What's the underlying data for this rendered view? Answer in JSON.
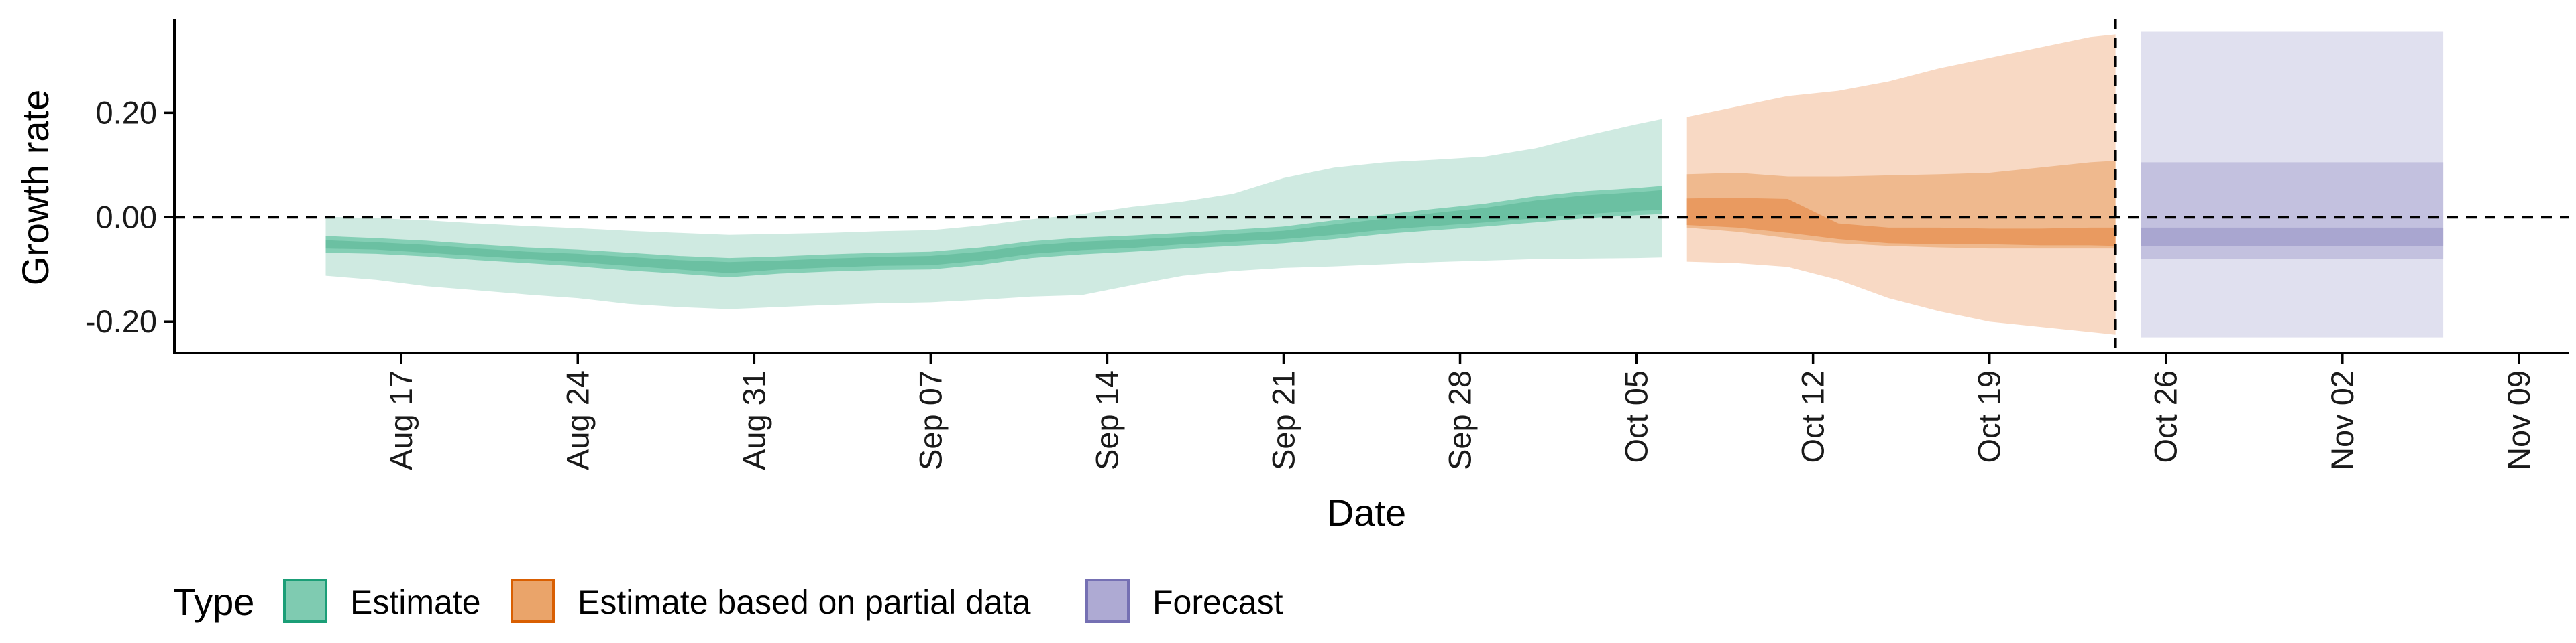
{
  "chart_data": {
    "type": "area",
    "xlabel": "Date",
    "ylabel": "Growth rate",
    "ylim": [
      -0.26,
      0.38
    ],
    "xlim": [
      "2020-08-08",
      "2020-11-11"
    ],
    "y_ticks": [
      {
        "value": -0.2,
        "label": "-0.20"
      },
      {
        "value": 0.0,
        "label": "0.00"
      },
      {
        "value": 0.2,
        "label": "0.20"
      }
    ],
    "x_ticks": [
      {
        "date": "2020-08-17",
        "label": "Aug 17"
      },
      {
        "date": "2020-08-24",
        "label": "Aug 24"
      },
      {
        "date": "2020-08-31",
        "label": "Aug 31"
      },
      {
        "date": "2020-09-07",
        "label": "Sep 07"
      },
      {
        "date": "2020-09-14",
        "label": "Sep 14"
      },
      {
        "date": "2020-09-21",
        "label": "Sep 21"
      },
      {
        "date": "2020-09-28",
        "label": "Sep 28"
      },
      {
        "date": "2020-10-05",
        "label": "Oct 05"
      },
      {
        "date": "2020-10-12",
        "label": "Oct 12"
      },
      {
        "date": "2020-10-19",
        "label": "Oct 19"
      },
      {
        "date": "2020-10-26",
        "label": "Oct 26"
      },
      {
        "date": "2020-11-02",
        "label": "Nov 02"
      },
      {
        "date": "2020-11-09",
        "label": "Nov 09"
      }
    ],
    "reference_lines": {
      "horizontal_y": 0.0,
      "vertical_date": "2020-10-24"
    },
    "legend": {
      "title": "Type",
      "position": "bottom-left",
      "items": [
        {
          "label": "Estimate",
          "fill": "#7fcbb1",
          "border": "#1b9e77"
        },
        {
          "label": "Estimate based on partial data",
          "fill": "#eaa46a",
          "border": "#d95f02"
        },
        {
          "label": "Forecast",
          "fill": "#aeaad3",
          "border": "#7570b3"
        }
      ]
    },
    "series": [
      {
        "name": "Estimate",
        "colors": {
          "outer": "#cfeae1",
          "mid": "#84cfb5",
          "inner": "#6bc0a2"
        },
        "points": [
          {
            "date": "2020-08-14",
            "outer": [
              -0.112,
              0.001
            ],
            "mid": [
              -0.068,
              -0.036
            ],
            "inner": [
              -0.06,
              -0.044
            ]
          },
          {
            "date": "2020-08-16",
            "outer": [
              -0.12,
              -0.002
            ],
            "mid": [
              -0.07,
              -0.04
            ],
            "inner": [
              -0.062,
              -0.048
            ]
          },
          {
            "date": "2020-08-18",
            "outer": [
              -0.132,
              -0.006
            ],
            "mid": [
              -0.075,
              -0.045
            ],
            "inner": [
              -0.068,
              -0.053
            ]
          },
          {
            "date": "2020-08-20",
            "outer": [
              -0.14,
              -0.012
            ],
            "mid": [
              -0.082,
              -0.052
            ],
            "inner": [
              -0.074,
              -0.06
            ]
          },
          {
            "date": "2020-08-22",
            "outer": [
              -0.148,
              -0.017
            ],
            "mid": [
              -0.088,
              -0.058
            ],
            "inner": [
              -0.08,
              -0.066
            ]
          },
          {
            "date": "2020-08-24",
            "outer": [
              -0.155,
              -0.021
            ],
            "mid": [
              -0.094,
              -0.062
            ],
            "inner": [
              -0.086,
              -0.07
            ]
          },
          {
            "date": "2020-08-26",
            "outer": [
              -0.166,
              -0.026
            ],
            "mid": [
              -0.102,
              -0.068
            ],
            "inner": [
              -0.093,
              -0.076
            ]
          },
          {
            "date": "2020-08-28",
            "outer": [
              -0.172,
              -0.03
            ],
            "mid": [
              -0.108,
              -0.074
            ],
            "inner": [
              -0.1,
              -0.082
            ]
          },
          {
            "date": "2020-08-30",
            "outer": [
              -0.176,
              -0.034
            ],
            "mid": [
              -0.115,
              -0.078
            ],
            "inner": [
              -0.107,
              -0.086
            ]
          },
          {
            "date": "2020-09-01",
            "outer": [
              -0.172,
              -0.032
            ],
            "mid": [
              -0.108,
              -0.075
            ],
            "inner": [
              -0.1,
              -0.083
            ]
          },
          {
            "date": "2020-09-03",
            "outer": [
              -0.168,
              -0.03
            ],
            "mid": [
              -0.104,
              -0.071
            ],
            "inner": [
              -0.096,
              -0.079
            ]
          },
          {
            "date": "2020-09-05",
            "outer": [
              -0.165,
              -0.027
            ],
            "mid": [
              -0.101,
              -0.068
            ],
            "inner": [
              -0.093,
              -0.076
            ]
          },
          {
            "date": "2020-09-07",
            "outer": [
              -0.163,
              -0.025
            ],
            "mid": [
              -0.1,
              -0.066
            ],
            "inner": [
              -0.092,
              -0.074
            ]
          },
          {
            "date": "2020-09-09",
            "outer": [
              -0.158,
              -0.016
            ],
            "mid": [
              -0.091,
              -0.058
            ],
            "inner": [
              -0.083,
              -0.066
            ]
          },
          {
            "date": "2020-09-11",
            "outer": [
              -0.152,
              -0.004
            ],
            "mid": [
              -0.078,
              -0.046
            ],
            "inner": [
              -0.07,
              -0.054
            ]
          },
          {
            "date": "2020-09-13",
            "outer": [
              -0.149,
              0.006
            ],
            "mid": [
              -0.071,
              -0.039
            ],
            "inner": [
              -0.063,
              -0.047
            ]
          },
          {
            "date": "2020-09-15",
            "outer": [
              -0.13,
              0.02
            ],
            "mid": [
              -0.066,
              -0.035
            ],
            "inner": [
              -0.059,
              -0.043
            ]
          },
          {
            "date": "2020-09-17",
            "outer": [
              -0.112,
              0.03
            ],
            "mid": [
              -0.06,
              -0.03
            ],
            "inner": [
              -0.052,
              -0.038
            ]
          },
          {
            "date": "2020-09-19",
            "outer": [
              -0.103,
              0.045
            ],
            "mid": [
              -0.055,
              -0.024
            ],
            "inner": [
              -0.047,
              -0.032
            ]
          },
          {
            "date": "2020-09-21",
            "outer": [
              -0.097,
              0.075
            ],
            "mid": [
              -0.05,
              -0.018
            ],
            "inner": [
              -0.042,
              -0.026
            ]
          },
          {
            "date": "2020-09-23",
            "outer": [
              -0.094,
              0.095
            ],
            "mid": [
              -0.042,
              -0.006
            ],
            "inner": [
              -0.034,
              -0.014
            ]
          },
          {
            "date": "2020-09-25",
            "outer": [
              -0.09,
              0.105
            ],
            "mid": [
              -0.032,
              0.005
            ],
            "inner": [
              -0.024,
              -0.003
            ]
          },
          {
            "date": "2020-09-27",
            "outer": [
              -0.086,
              0.11
            ],
            "mid": [
              -0.025,
              0.016
            ],
            "inner": [
              -0.017,
              0.008
            ]
          },
          {
            "date": "2020-09-29",
            "outer": [
              -0.083,
              0.116
            ],
            "mid": [
              -0.018,
              0.026
            ],
            "inner": [
              -0.01,
              0.018
            ]
          },
          {
            "date": "2020-10-01",
            "outer": [
              -0.08,
              0.132
            ],
            "mid": [
              -0.01,
              0.04
            ],
            "inner": [
              -0.002,
              0.032
            ]
          },
          {
            "date": "2020-10-03",
            "outer": [
              -0.079,
              0.156
            ],
            "mid": [
              -0.002,
              0.05
            ],
            "inner": [
              0.006,
              0.042
            ]
          },
          {
            "date": "2020-10-05",
            "outer": [
              -0.078,
              0.178
            ],
            "mid": [
              0.004,
              0.056
            ],
            "inner": [
              0.012,
              0.048
            ]
          },
          {
            "date": "2020-10-06",
            "outer": [
              -0.077,
              0.188
            ],
            "mid": [
              0.006,
              0.06
            ],
            "inner": [
              0.014,
              0.052
            ]
          }
        ]
      },
      {
        "name": "Estimate based on partial data",
        "colors": {
          "outer": "#f8d9c4",
          "mid": "#efb98e",
          "inner": "#e99a60"
        },
        "points": [
          {
            "date": "2020-10-07",
            "outer": [
              -0.085,
              0.192
            ],
            "mid": [
              -0.02,
              0.082
            ],
            "inner": [
              -0.015,
              0.036
            ]
          },
          {
            "date": "2020-10-09",
            "outer": [
              -0.088,
              0.212
            ],
            "mid": [
              -0.028,
              0.085
            ],
            "inner": [
              -0.02,
              0.037
            ]
          },
          {
            "date": "2020-10-11",
            "outer": [
              -0.095,
              0.232
            ],
            "mid": [
              -0.04,
              0.078
            ],
            "inner": [
              -0.03,
              0.035
            ]
          },
          {
            "date": "2020-10-13",
            "outer": [
              -0.12,
              0.242
            ],
            "mid": [
              -0.05,
              0.078
            ],
            "inner": [
              -0.042,
              -0.012
            ]
          },
          {
            "date": "2020-10-15",
            "outer": [
              -0.155,
              0.26
            ],
            "mid": [
              -0.055,
              0.08
            ],
            "inner": [
              -0.05,
              -0.02
            ]
          },
          {
            "date": "2020-10-17",
            "outer": [
              -0.18,
              0.285
            ],
            "mid": [
              -0.058,
              0.082
            ],
            "inner": [
              -0.052,
              -0.02
            ]
          },
          {
            "date": "2020-10-19",
            "outer": [
              -0.2,
              0.305
            ],
            "mid": [
              -0.06,
              0.085
            ],
            "inner": [
              -0.052,
              -0.022
            ]
          },
          {
            "date": "2020-10-21",
            "outer": [
              -0.21,
              0.325
            ],
            "mid": [
              -0.06,
              0.095
            ],
            "inner": [
              -0.054,
              -0.022
            ]
          },
          {
            "date": "2020-10-23",
            "outer": [
              -0.22,
              0.345
            ],
            "mid": [
              -0.06,
              0.105
            ],
            "inner": [
              -0.054,
              -0.02
            ]
          },
          {
            "date": "2020-10-24",
            "outer": [
              -0.225,
              0.35
            ],
            "mid": [
              -0.06,
              0.108
            ],
            "inner": [
              -0.055,
              -0.02
            ]
          }
        ]
      },
      {
        "name": "Forecast",
        "colors": {
          "outer": "#e0e0ef",
          "mid": "#c3c1df",
          "inner": "#a9a6d0"
        },
        "points": [
          {
            "date": "2020-10-25",
            "outer": [
              -0.23,
              0.355
            ],
            "mid": [
              -0.08,
              0.105
            ],
            "inner": [
              -0.055,
              -0.02
            ]
          },
          {
            "date": "2020-11-06",
            "outer": [
              -0.23,
              0.355
            ],
            "mid": [
              -0.08,
              0.105
            ],
            "inner": [
              -0.055,
              -0.02
            ]
          }
        ]
      }
    ]
  }
}
